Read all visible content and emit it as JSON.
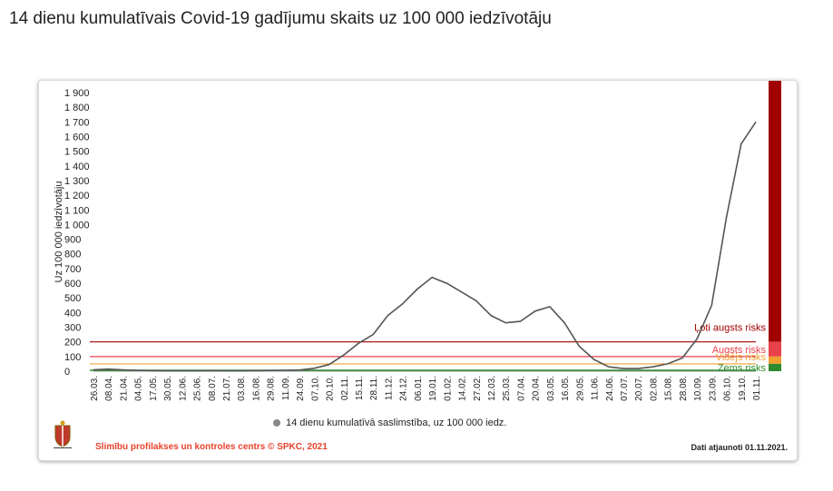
{
  "title": "14 dienu kumulatīvais Covid-19 gadījumu skaits uz 100 000 iedzīvotāju",
  "footer": {
    "source": "Slimību profilakses un kontroles centrs © SPKC, 2021",
    "updated": "Dati atjaunoti 01.11.2021."
  },
  "colors": {
    "line": "#555555",
    "very_high": "#a00000",
    "high": "#e8414a",
    "medium": "#f0a030",
    "low": "#2e8b2e"
  },
  "chart_data": {
    "type": "line",
    "title": "14 dienu kumulatīvais Covid-19 gadījumu skaits uz 100 000 iedzīvotāju",
    "ylabel": "Uz 100 000 iedzīvotāju",
    "xlabel": "",
    "ylim": [
      0,
      1900
    ],
    "yticks": [
      "0",
      "100",
      "200",
      "300",
      "400",
      "500",
      "600",
      "700",
      "800",
      "900",
      "1 000",
      "1 100",
      "1 200",
      "1 300",
      "1 400",
      "1 500",
      "1 600",
      "1 700",
      "1 800",
      "1 900"
    ],
    "categories": [
      "26.03.",
      "08.04.",
      "21.04.",
      "04.05.",
      "17.05.",
      "30.05.",
      "12.06.",
      "25.06.",
      "08.07.",
      "21.07.",
      "03.08.",
      "16.08.",
      "29.08.",
      "11.09.",
      "24.09.",
      "07.10.",
      "20.10.",
      "02.11.",
      "15.11.",
      "28.11.",
      "11.12.",
      "24.12.",
      "06.01.",
      "19.01.",
      "01.02.",
      "14.02.",
      "27.02.",
      "12.03.",
      "25.03.",
      "07.04.",
      "20.04.",
      "03.05.",
      "16.05.",
      "29.05.",
      "11.06.",
      "24.06.",
      "07.07.",
      "20.07.",
      "02.08.",
      "15.08.",
      "28.08.",
      "10.09.",
      "23.09.",
      "06.10.",
      "19.10.",
      "01.11."
    ],
    "legend_position": "bottom",
    "grid": false,
    "series": [
      {
        "name": "14 dienu kumulatīvā saslimstība, uz 100 000 iedz.",
        "values": [
          10,
          14,
          9,
          6,
          4,
          2,
          2,
          2,
          3,
          2,
          2,
          3,
          5,
          6,
          8,
          20,
          45,
          110,
          190,
          250,
          380,
          460,
          560,
          640,
          600,
          540,
          480,
          380,
          330,
          340,
          410,
          440,
          330,
          170,
          80,
          30,
          18,
          18,
          30,
          50,
          90,
          220,
          450,
          1050,
          1550,
          1700
        ]
      }
    ],
    "risk_levels": [
      {
        "label": "Ļoti augsts risks",
        "threshold": 200
      },
      {
        "label": "Augsts risks",
        "threshold": 100
      },
      {
        "label": "Vidējs risks",
        "threshold": 50
      },
      {
        "label": "Zems risks",
        "threshold": 0
      }
    ]
  }
}
